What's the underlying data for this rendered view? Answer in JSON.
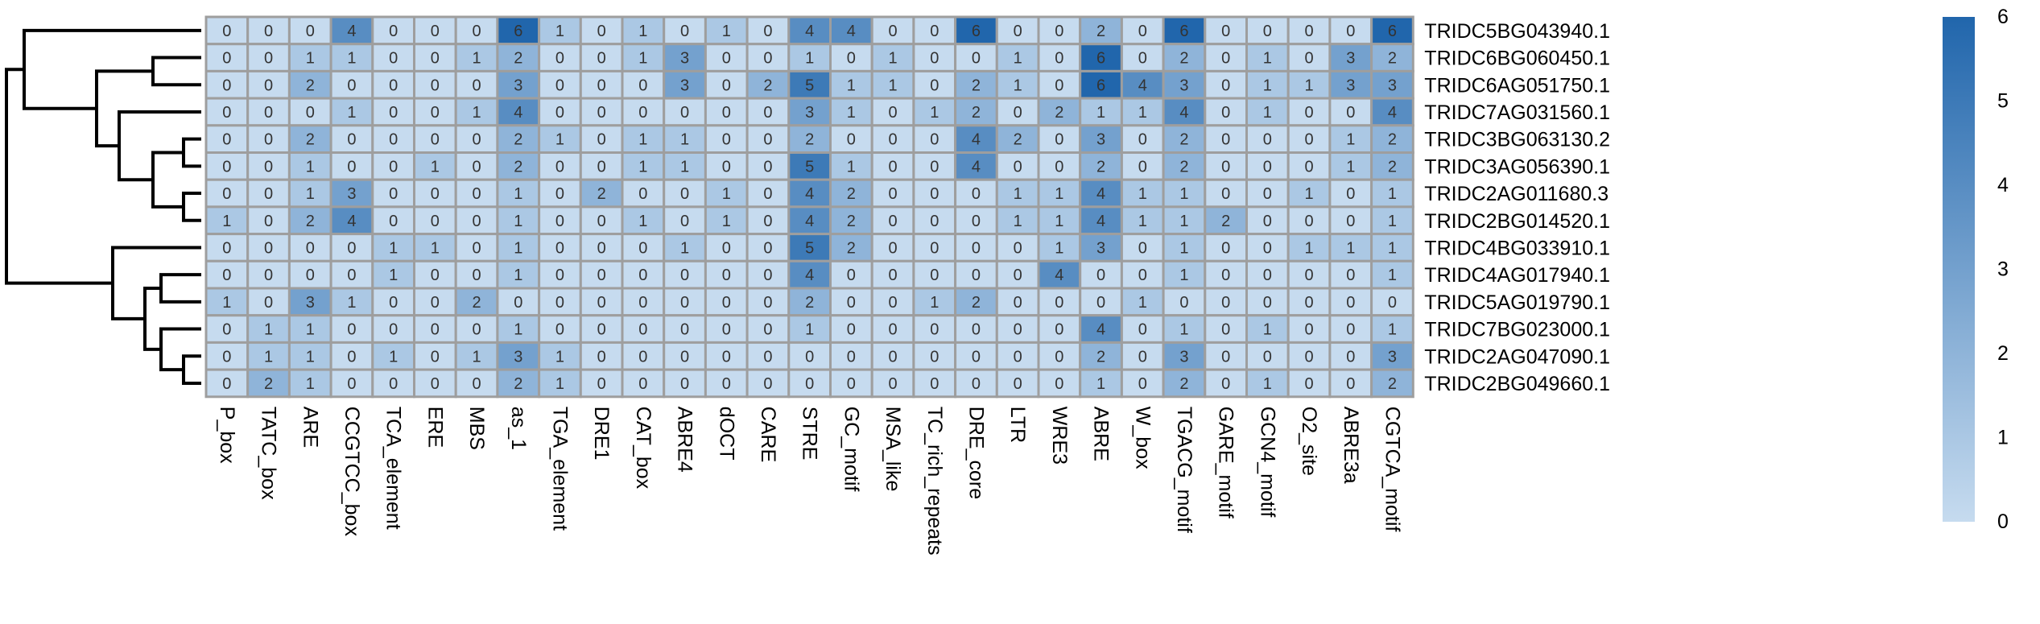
{
  "chart_data": {
    "type": "heatmap",
    "title": "",
    "xlabel": "",
    "ylabel": "",
    "rows": [
      "TRIDC5BG043940.1",
      "TRIDC6BG060450.1",
      "TRIDC6AG051750.1",
      "TRIDC7AG031560.1",
      "TRIDC3BG063130.2",
      "TRIDC3AG056390.1",
      "TRIDC2AG011680.3",
      "TRIDC2BG014520.1",
      "TRIDC4BG033910.1",
      "TRIDC4AG017940.1",
      "TRIDC5AG019790.1",
      "TRIDC7BG023000.1",
      "TRIDC2AG047090.1",
      "TRIDC2BG049660.1"
    ],
    "columns": [
      "P_box",
      "TATC_box",
      "ARE",
      "CCGTCC_box",
      "TCA_element",
      "ERE",
      "MBS",
      "as_1",
      "TGA_element",
      "DRE1",
      "CAT_box",
      "ABRE4",
      "dOCT",
      "CARE",
      "STRE",
      "GC_motif",
      "MSA_like",
      "TC_rich_repeats",
      "DRE_core",
      "LTR",
      "WRE3",
      "ABRE",
      "W_box",
      "TGACG_motif",
      "GARE_motif",
      "GCN4_motif",
      "O2_site",
      "ABRE3a",
      "CGTCA_motif"
    ],
    "values": [
      [
        0,
        0,
        0,
        4,
        0,
        0,
        0,
        6,
        1,
        0,
        1,
        0,
        1,
        0,
        4,
        4,
        0,
        0,
        6,
        0,
        0,
        2,
        0,
        6,
        0,
        0,
        0,
        0,
        6
      ],
      [
        0,
        0,
        1,
        1,
        0,
        0,
        1,
        2,
        0,
        0,
        1,
        3,
        0,
        0,
        1,
        0,
        1,
        0,
        0,
        1,
        0,
        6,
        0,
        2,
        0,
        1,
        0,
        3,
        2
      ],
      [
        0,
        0,
        2,
        0,
        0,
        0,
        0,
        3,
        0,
        0,
        0,
        3,
        0,
        2,
        5,
        1,
        1,
        0,
        2,
        1,
        0,
        6,
        4,
        3,
        0,
        1,
        1,
        3,
        3
      ],
      [
        0,
        0,
        0,
        1,
        0,
        0,
        1,
        4,
        0,
        0,
        0,
        0,
        0,
        0,
        3,
        1,
        0,
        1,
        2,
        0,
        2,
        1,
        1,
        4,
        0,
        1,
        0,
        0,
        4
      ],
      [
        0,
        0,
        2,
        0,
        0,
        0,
        0,
        2,
        1,
        0,
        1,
        1,
        0,
        0,
        2,
        0,
        0,
        0,
        4,
        2,
        0,
        3,
        0,
        2,
        0,
        0,
        0,
        1,
        2
      ],
      [
        0,
        0,
        1,
        0,
        0,
        1,
        0,
        2,
        0,
        0,
        1,
        1,
        0,
        0,
        5,
        1,
        0,
        0,
        4,
        0,
        0,
        2,
        0,
        2,
        0,
        0,
        0,
        1,
        2
      ],
      [
        0,
        0,
        1,
        3,
        0,
        0,
        0,
        1,
        0,
        2,
        0,
        0,
        1,
        0,
        4,
        2,
        0,
        0,
        0,
        1,
        1,
        4,
        1,
        1,
        0,
        0,
        1,
        0,
        1
      ],
      [
        1,
        0,
        2,
        4,
        0,
        0,
        0,
        1,
        0,
        0,
        1,
        0,
        1,
        0,
        4,
        2,
        0,
        0,
        0,
        1,
        1,
        4,
        1,
        1,
        2,
        0,
        0,
        0,
        1
      ],
      [
        0,
        0,
        0,
        0,
        1,
        1,
        0,
        1,
        0,
        0,
        0,
        1,
        0,
        0,
        5,
        2,
        0,
        0,
        0,
        0,
        1,
        3,
        0,
        1,
        0,
        0,
        1,
        1,
        1
      ],
      [
        0,
        0,
        0,
        0,
        1,
        0,
        0,
        1,
        0,
        0,
        0,
        0,
        0,
        0,
        4,
        0,
        0,
        0,
        0,
        0,
        4,
        0,
        0,
        1,
        0,
        0,
        0,
        0,
        1
      ],
      [
        1,
        0,
        3,
        1,
        0,
        0,
        2,
        0,
        0,
        0,
        0,
        0,
        0,
        0,
        2,
        0,
        0,
        1,
        2,
        0,
        0,
        0,
        1,
        0,
        0,
        0,
        0,
        0,
        0
      ],
      [
        0,
        1,
        1,
        0,
        0,
        0,
        0,
        1,
        0,
        0,
        0,
        0,
        0,
        0,
        1,
        0,
        0,
        0,
        0,
        0,
        0,
        4,
        0,
        1,
        0,
        1,
        0,
        0,
        1
      ],
      [
        0,
        1,
        1,
        0,
        1,
        0,
        1,
        3,
        1,
        0,
        0,
        0,
        0,
        0,
        0,
        0,
        0,
        0,
        0,
        0,
        0,
        2,
        0,
        3,
        0,
        0,
        0,
        0,
        3
      ],
      [
        0,
        2,
        1,
        0,
        0,
        0,
        0,
        2,
        1,
        0,
        0,
        0,
        0,
        0,
        0,
        0,
        0,
        0,
        0,
        0,
        0,
        1,
        0,
        2,
        0,
        1,
        0,
        0,
        2
      ]
    ],
    "color_scale": {
      "min": 0,
      "max": 6,
      "low": "#c6dbef",
      "high": "#2166ac"
    },
    "legend_ticks": [
      0,
      1,
      2,
      3,
      4,
      5,
      6
    ],
    "legend_position": "right",
    "dendrogram": "rows",
    "grid": true
  }
}
